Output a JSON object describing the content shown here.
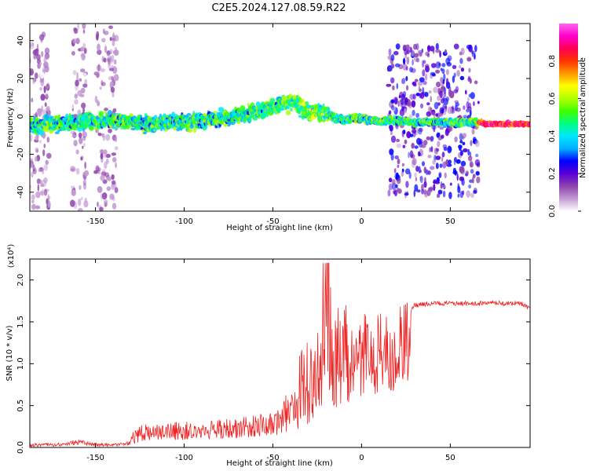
{
  "title": "C2E5.2024.127.08.59.R22",
  "chart_data": [
    {
      "type": "heatmap",
      "xlabel": "Height of straight line (km)",
      "ylabel": "Frequency (Hz)",
      "xlim": [
        -187,
        95
      ],
      "ylim": [
        -50,
        49
      ],
      "xticks": [
        -150,
        -100,
        -50,
        0,
        50
      ],
      "yticks": [
        -40,
        -20,
        0,
        20,
        40
      ],
      "colorbar": {
        "label": "Normalized spectral amplitude",
        "range": [
          0,
          1
        ],
        "ticks": [
          "0.0",
          "0.2",
          "0.4",
          "0.6",
          "0.8"
        ],
        "colors": [
          "#ffffff",
          "#c39bd3",
          "#8e44ad",
          "#5a00d6",
          "#0000ff",
          "#00b0ff",
          "#00e5ff",
          "#00ff80",
          "#40ff00",
          "#b0ff00",
          "#ffff00",
          "#ff9900",
          "#ff3300",
          "#ff0055",
          "#ff00cc",
          "#ff66ee"
        ]
      },
      "ridge": {
        "x": [
          -185,
          -160,
          -140,
          -120,
          -100,
          -80,
          -60,
          -45,
          -38,
          -30,
          -22,
          -15,
          -10,
          -5,
          0,
          5,
          10,
          15,
          30,
          50,
          65,
          70,
          80,
          95
        ],
        "y": [
          -5,
          -3,
          -2,
          -4,
          -3,
          -1,
          2,
          7,
          7,
          2,
          3,
          -1,
          -2,
          -1,
          -1,
          -2,
          -3,
          -2,
          -3,
          -3,
          -3,
          -4,
          -4,
          -4
        ]
      },
      "broadband_bursts": [
        {
          "x": [
            -187,
            -176
          ],
          "y": [
            -50,
            45
          ]
        },
        {
          "x": [
            -163,
            -155
          ],
          "y": [
            -50,
            49
          ]
        },
        {
          "x": [
            -150,
            -138
          ],
          "y": [
            -50,
            49
          ]
        },
        {
          "x": [
            15,
            66
          ],
          "y": [
            -42,
            37
          ]
        }
      ]
    },
    {
      "type": "line",
      "xlabel": "Height of straight line (km)",
      "ylabel": "SNR (10 * v/v)",
      "yscale_label": "(x10⁴)",
      "xlim": [
        -187,
        95
      ],
      "ylim": [
        0,
        2.25
      ],
      "xticks": [
        -150,
        -100,
        -50,
        0,
        50
      ],
      "yticks": [
        0.0,
        0.5,
        1.0,
        1.5,
        2.0
      ],
      "series": [
        {
          "color": "#ee2222",
          "x": [
            -187,
            -170,
            -165,
            -160,
            -150,
            -140,
            -130,
            -125,
            -120,
            -110,
            -100,
            -90,
            -80,
            -70,
            -60,
            -50,
            -45,
            -40,
            -35,
            -30,
            -25,
            -22,
            -20,
            -18,
            -15,
            -12,
            -10,
            -8,
            -5,
            -2,
            0,
            5,
            10,
            15,
            20,
            25,
            30,
            40,
            50,
            60,
            70,
            80,
            90,
            95
          ],
          "y": [
            0.02,
            0.03,
            0.05,
            0.07,
            0.03,
            0.02,
            0.05,
            0.15,
            0.17,
            0.17,
            0.2,
            0.18,
            0.22,
            0.23,
            0.27,
            0.3,
            0.35,
            0.38,
            0.42,
            0.55,
            0.75,
            1.0,
            1.45,
            1.25,
            1.0,
            0.85,
            0.95,
            1.1,
            1.2,
            1.0,
            1.3,
            1.2,
            1.25,
            1.3,
            1.45,
            1.6,
            1.7,
            1.72,
            1.72,
            1.72,
            1.72,
            1.72,
            1.72,
            1.65
          ]
        }
      ]
    }
  ]
}
